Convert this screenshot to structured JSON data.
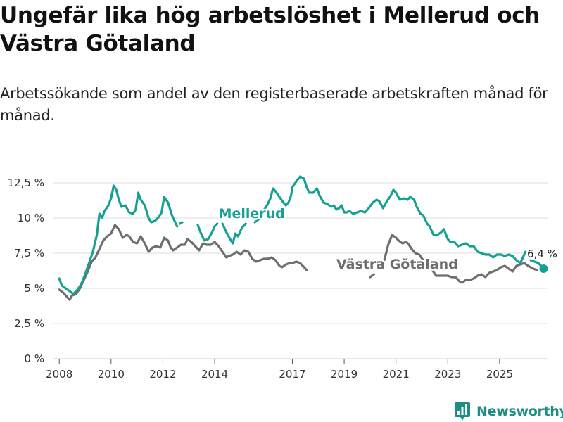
{
  "title": "Ungefär lika hög arbetslöshet i Mellerud och Västra Götaland",
  "subtitle": "Arbetssökande som andel av den registerbaserade arbetskraften månad för månad.",
  "brand": "Newsworthy",
  "colors": {
    "mellerud": "#16a093",
    "vastra": "#6e6e71",
    "grid": "#dedede",
    "text": "#333333"
  },
  "chart_data": {
    "type": "line",
    "xlim": [
      2007.75,
      2026.85
    ],
    "ylim": [
      0,
      13.5
    ],
    "y_ticks": [
      {
        "value": 0,
        "label": "0 %"
      },
      {
        "value": 2.5,
        "label": "2,5 %"
      },
      {
        "value": 5,
        "label": "5 %"
      },
      {
        "value": 7.5,
        "label": "7,5 %"
      },
      {
        "value": 10,
        "label": "10 %"
      },
      {
        "value": 12.5,
        "label": "12,5 %"
      }
    ],
    "x_ticks": [
      {
        "value": 2008,
        "label": "2008"
      },
      {
        "value": 2010,
        "label": "2010"
      },
      {
        "value": 2012,
        "label": "2012"
      },
      {
        "value": 2014,
        "label": "2014"
      },
      {
        "value": 2017,
        "label": "2017"
      },
      {
        "value": 2019,
        "label": "2019"
      },
      {
        "value": 2021,
        "label": "2021"
      },
      {
        "value": 2023,
        "label": "2023"
      },
      {
        "value": 2025,
        "label": "2025"
      }
    ],
    "end_label": "6,4 %",
    "series": [
      {
        "name": "Mellerud",
        "key": "mellerud",
        "points": [
          [
            2008.0,
            5.7
          ],
          [
            2008.1,
            5.2
          ],
          [
            2008.25,
            5.0
          ],
          [
            2008.4,
            4.8
          ],
          [
            2008.55,
            4.6
          ],
          [
            2008.7,
            4.9
          ],
          [
            2008.85,
            5.3
          ],
          [
            2009.0,
            6.0
          ],
          [
            2009.15,
            6.8
          ],
          [
            2009.3,
            7.6
          ],
          [
            2009.45,
            8.8
          ],
          [
            2009.55,
            10.3
          ],
          [
            2009.65,
            10.0
          ],
          [
            2009.75,
            10.5
          ],
          [
            2009.9,
            10.9
          ],
          [
            2010.0,
            11.4
          ],
          [
            2010.1,
            12.3
          ],
          [
            2010.2,
            12.0
          ],
          [
            2010.3,
            11.3
          ],
          [
            2010.4,
            10.8
          ],
          [
            2010.55,
            10.9
          ],
          [
            2010.7,
            10.4
          ],
          [
            2010.85,
            10.3
          ],
          [
            2010.95,
            10.6
          ],
          [
            2011.05,
            11.8
          ],
          [
            2011.15,
            11.3
          ],
          [
            2011.3,
            10.9
          ],
          [
            2011.45,
            10.0
          ],
          [
            2011.55,
            9.7
          ],
          [
            2011.7,
            9.8
          ],
          [
            2011.85,
            10.1
          ],
          [
            2011.95,
            10.4
          ],
          [
            2012.05,
            11.5
          ],
          [
            2012.2,
            11.1
          ],
          [
            2012.35,
            10.2
          ],
          [
            2012.45,
            9.8
          ],
          [
            2012.55,
            9.4
          ],
          null,
          [
            2012.65,
            9.6
          ],
          [
            2012.75,
            9.7
          ],
          null,
          [
            2013.35,
            9.5
          ],
          [
            2013.45,
            9.0
          ],
          [
            2013.6,
            8.4
          ],
          [
            2013.75,
            8.5
          ],
          [
            2013.9,
            9.0
          ],
          [
            2014.0,
            9.4
          ],
          [
            2014.1,
            9.6
          ],
          null,
          [
            2014.3,
            9.6
          ],
          [
            2014.45,
            9.0
          ],
          [
            2014.6,
            8.5
          ],
          [
            2014.7,
            8.2
          ],
          [
            2014.8,
            8.9
          ],
          [
            2014.9,
            8.7
          ],
          [
            2015.05,
            9.3
          ],
          [
            2015.2,
            9.6
          ],
          null,
          [
            2015.55,
            9.7
          ],
          [
            2015.7,
            9.9
          ],
          [
            2015.85,
            10.4
          ],
          [
            2015.95,
            10.7
          ],
          [
            2016.05,
            11.0
          ],
          [
            2016.15,
            11.4
          ],
          [
            2016.25,
            12.1
          ],
          [
            2016.35,
            11.9
          ],
          [
            2016.5,
            11.5
          ],
          [
            2016.65,
            11.1
          ],
          [
            2016.75,
            10.9
          ],
          [
            2016.85,
            11.1
          ],
          [
            2016.95,
            11.6
          ],
          [
            2017.0,
            12.2
          ],
          [
            2017.15,
            12.6
          ],
          [
            2017.3,
            12.95
          ],
          [
            2017.45,
            12.8
          ],
          [
            2017.55,
            12.2
          ],
          [
            2017.65,
            11.8
          ],
          [
            2017.8,
            11.8
          ],
          [
            2017.95,
            12.1
          ],
          [
            2018.05,
            11.6
          ],
          [
            2018.2,
            11.1
          ],
          [
            2018.35,
            11.0
          ],
          [
            2018.5,
            10.8
          ],
          [
            2018.6,
            10.9
          ],
          [
            2018.7,
            10.6
          ],
          [
            2018.8,
            10.7
          ],
          [
            2018.9,
            10.9
          ],
          [
            2019.0,
            10.4
          ],
          [
            2019.1,
            10.4
          ],
          [
            2019.2,
            10.5
          ],
          [
            2019.35,
            10.3
          ],
          [
            2019.5,
            10.4
          ],
          [
            2019.65,
            10.5
          ],
          [
            2019.8,
            10.4
          ],
          [
            2019.95,
            10.7
          ],
          [
            2020.1,
            11.1
          ],
          [
            2020.25,
            11.3
          ],
          [
            2020.35,
            11.2
          ],
          [
            2020.5,
            10.7
          ],
          [
            2020.65,
            11.2
          ],
          [
            2020.8,
            11.6
          ],
          [
            2020.9,
            12.0
          ],
          [
            2021.0,
            11.8
          ],
          [
            2021.15,
            11.3
          ],
          [
            2021.3,
            11.4
          ],
          [
            2021.45,
            11.3
          ],
          [
            2021.55,
            11.5
          ],
          [
            2021.7,
            11.3
          ],
          [
            2021.8,
            10.8
          ],
          [
            2021.95,
            10.3
          ],
          [
            2022.05,
            10.2
          ],
          [
            2022.2,
            9.6
          ],
          [
            2022.3,
            9.4
          ],
          [
            2022.45,
            8.8
          ],
          [
            2022.6,
            8.8
          ],
          [
            2022.75,
            9.0
          ],
          [
            2022.85,
            9.2
          ],
          [
            2023.0,
            8.5
          ],
          [
            2023.1,
            8.3
          ],
          [
            2023.25,
            8.3
          ],
          [
            2023.4,
            8.0
          ],
          [
            2023.55,
            8.1
          ],
          [
            2023.7,
            8.2
          ],
          [
            2023.85,
            8.0
          ],
          [
            2024.0,
            8.0
          ],
          [
            2024.15,
            7.6
          ],
          [
            2024.3,
            7.5
          ],
          [
            2024.45,
            7.4
          ],
          [
            2024.6,
            7.4
          ],
          [
            2024.75,
            7.2
          ],
          [
            2024.9,
            7.4
          ],
          [
            2025.05,
            7.4
          ],
          [
            2025.2,
            7.3
          ],
          [
            2025.35,
            7.4
          ],
          [
            2025.5,
            7.3
          ],
          [
            2025.65,
            7.0
          ],
          [
            2025.8,
            6.8
          ],
          [
            2025.9,
            7.2
          ],
          [
            2026.0,
            7.6
          ],
          null,
          [
            2026.2,
            7.0
          ],
          [
            2026.35,
            6.9
          ],
          [
            2026.5,
            6.8
          ],
          [
            2026.6,
            6.6
          ],
          [
            2026.7,
            6.4
          ]
        ]
      },
      {
        "name": "Västra Götaland",
        "key": "vastra",
        "points": [
          [
            2008.0,
            4.9
          ],
          [
            2008.15,
            4.7
          ],
          [
            2008.3,
            4.4
          ],
          [
            2008.4,
            4.2
          ],
          [
            2008.5,
            4.5
          ],
          [
            2008.65,
            4.6
          ],
          [
            2008.8,
            5.0
          ],
          [
            2008.95,
            5.6
          ],
          [
            2009.1,
            6.2
          ],
          [
            2009.25,
            6.9
          ],
          [
            2009.4,
            7.2
          ],
          [
            2009.55,
            7.8
          ],
          [
            2009.7,
            8.4
          ],
          [
            2009.85,
            8.7
          ],
          [
            2010.0,
            8.9
          ],
          [
            2010.15,
            9.5
          ],
          [
            2010.3,
            9.2
          ],
          [
            2010.45,
            8.6
          ],
          [
            2010.6,
            8.8
          ],
          [
            2010.7,
            8.7
          ],
          [
            2010.85,
            8.3
          ],
          [
            2011.0,
            8.2
          ],
          [
            2011.15,
            8.7
          ],
          [
            2011.3,
            8.2
          ],
          [
            2011.45,
            7.6
          ],
          [
            2011.6,
            7.9
          ],
          [
            2011.75,
            8.0
          ],
          [
            2011.9,
            7.9
          ],
          [
            2012.05,
            8.6
          ],
          [
            2012.2,
            8.4
          ],
          [
            2012.3,
            7.9
          ],
          [
            2012.4,
            7.7
          ],
          [
            2012.55,
            7.9
          ],
          [
            2012.7,
            8.1
          ],
          [
            2012.85,
            8.1
          ],
          [
            2012.95,
            8.5
          ],
          [
            2013.1,
            8.3
          ],
          [
            2013.25,
            8.0
          ],
          [
            2013.4,
            7.7
          ],
          [
            2013.55,
            8.2
          ],
          [
            2013.7,
            8.1
          ],
          [
            2013.85,
            8.1
          ],
          [
            2014.0,
            8.3
          ],
          [
            2014.15,
            8.0
          ],
          [
            2014.3,
            7.6
          ],
          [
            2014.45,
            7.2
          ],
          [
            2014.55,
            7.3
          ],
          [
            2014.7,
            7.4
          ],
          [
            2014.85,
            7.6
          ],
          [
            2015.0,
            7.4
          ],
          [
            2015.15,
            7.7
          ],
          [
            2015.3,
            7.6
          ],
          [
            2015.45,
            7.1
          ],
          [
            2015.6,
            6.9
          ],
          [
            2015.75,
            7.0
          ],
          [
            2015.9,
            7.1
          ],
          [
            2016.05,
            7.1
          ],
          [
            2016.2,
            7.2
          ],
          [
            2016.35,
            7.0
          ],
          [
            2016.5,
            6.6
          ],
          [
            2016.6,
            6.5
          ],
          [
            2016.75,
            6.7
          ],
          [
            2016.9,
            6.8
          ],
          [
            2017.0,
            6.8
          ],
          [
            2017.15,
            6.9
          ],
          [
            2017.3,
            6.8
          ],
          [
            2017.45,
            6.5
          ],
          [
            2017.55,
            6.3
          ],
          null,
          [
            2020.0,
            5.8
          ],
          [
            2020.15,
            6.0
          ],
          null,
          [
            2020.55,
            7.0
          ],
          [
            2020.7,
            8.1
          ],
          [
            2020.85,
            8.8
          ],
          [
            2021.0,
            8.6
          ],
          [
            2021.1,
            8.4
          ],
          [
            2021.25,
            8.2
          ],
          [
            2021.4,
            8.3
          ],
          [
            2021.5,
            8.1
          ],
          [
            2021.6,
            7.8
          ],
          [
            2021.75,
            7.5
          ],
          [
            2021.9,
            7.4
          ],
          [
            2022.05,
            7.0
          ],
          null,
          [
            2022.4,
            6.3
          ],
          [
            2022.55,
            5.9
          ],
          [
            2022.7,
            5.9
          ],
          [
            2022.85,
            5.9
          ],
          [
            2023.0,
            5.9
          ],
          [
            2023.15,
            5.8
          ],
          [
            2023.3,
            5.8
          ],
          [
            2023.45,
            5.5
          ],
          [
            2023.55,
            5.4
          ],
          [
            2023.7,
            5.6
          ],
          [
            2023.85,
            5.6
          ],
          [
            2024.0,
            5.7
          ],
          [
            2024.15,
            5.9
          ],
          [
            2024.3,
            6.0
          ],
          [
            2024.45,
            5.8
          ],
          [
            2024.6,
            6.1
          ],
          [
            2024.75,
            6.2
          ],
          [
            2024.9,
            6.3
          ],
          [
            2025.05,
            6.5
          ],
          [
            2025.2,
            6.6
          ],
          [
            2025.35,
            6.4
          ],
          [
            2025.5,
            6.2
          ],
          [
            2025.65,
            6.6
          ],
          [
            2025.8,
            6.7
          ],
          [
            2025.95,
            6.8
          ],
          [
            2026.1,
            6.6
          ],
          [
            2026.3,
            6.4
          ],
          [
            2026.45,
            6.3
          ]
        ]
      }
    ],
    "series_labels": [
      {
        "text": "Mellerud",
        "key": "mellerud",
        "x": 2014.15,
        "y": 10.0
      },
      {
        "text": "Västra Götaland",
        "key": "vastra",
        "x": 2018.7,
        "y": 6.4
      }
    ]
  }
}
